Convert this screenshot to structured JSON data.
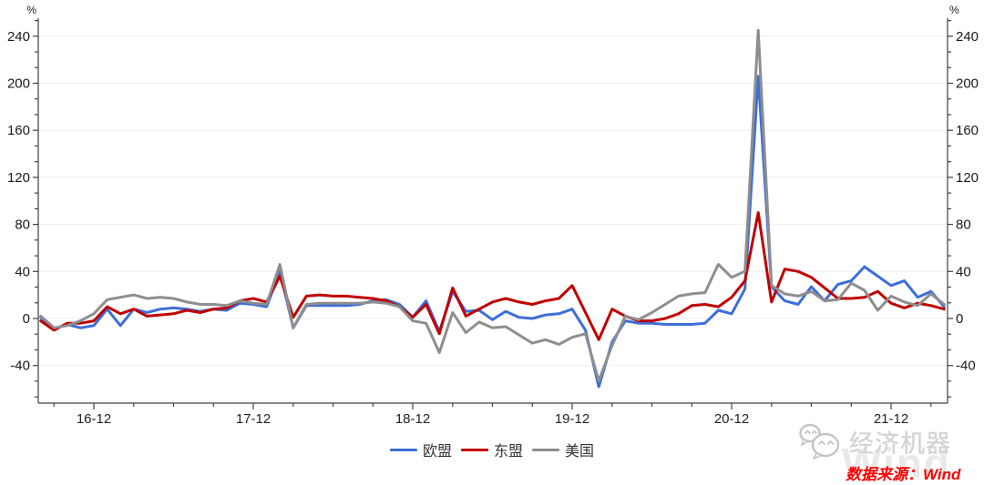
{
  "page": {
    "background": "#ffffff"
  },
  "colors": {
    "eu_blue": "#3d6ed9",
    "asean_red": "#c00000",
    "us_gray": "#8e8e8e",
    "axis": "#404040",
    "gridline": "#ededed",
    "tick_label": "#1a1a1a",
    "source_red": "#fa0000",
    "watermark_gray": "#e9e9e9"
  },
  "chart_data": {
    "type": "line",
    "title": "",
    "xlabel": "",
    "ylabel": "",
    "y_unit_label_left": "%",
    "y_unit_label_right": "%",
    "grid": "horizontal-major-only",
    "legend_position": "bottom-center",
    "y_axis": {
      "min": -66.7,
      "max": 253.3,
      "major_ticks": [
        -40,
        0,
        40,
        80,
        120,
        160,
        200,
        240
      ],
      "minor_ticks_per_major": 2,
      "mirrored_right_axis": true
    },
    "x_axis": {
      "labeled_ticks": [
        "16-12",
        "17-12",
        "18-12",
        "19-12",
        "20-12",
        "21-12"
      ],
      "minor_tick_every_months": 3
    },
    "x": [
      "16-08",
      "16-09",
      "16-10",
      "16-11",
      "16-12",
      "17-01",
      "17-02",
      "17-03",
      "17-04",
      "17-05",
      "17-06",
      "17-07",
      "17-08",
      "17-09",
      "17-10",
      "17-11",
      "17-12",
      "18-01",
      "18-02",
      "18-03",
      "18-04",
      "18-05",
      "18-06",
      "18-07",
      "18-08",
      "18-09",
      "18-10",
      "18-11",
      "18-12",
      "19-01",
      "19-02",
      "19-03",
      "19-04",
      "19-05",
      "19-06",
      "19-07",
      "19-08",
      "19-09",
      "19-10",
      "19-11",
      "19-12",
      "20-01",
      "20-02",
      "20-03",
      "20-04",
      "20-05",
      "20-06",
      "20-07",
      "20-08",
      "20-09",
      "20-10",
      "20-11",
      "20-12",
      "21-01",
      "21-02",
      "21-03",
      "21-04",
      "21-05",
      "21-06",
      "21-07",
      "21-08",
      "21-09",
      "21-10",
      "21-11",
      "21-12",
      "22-01",
      "22-02",
      "22-03",
      "22-04"
    ],
    "series": [
      {
        "id": "eu",
        "name": "欧盟",
        "color": "#3d6ed9",
        "values": [
          1,
          -9,
          -5,
          -8,
          -6,
          8,
          -6,
          8,
          5,
          8,
          9,
          8,
          6,
          8,
          7,
          13,
          12,
          10,
          40,
          -8,
          11,
          11,
          11,
          11,
          12,
          15,
          16,
          12,
          1,
          15,
          -11,
          23,
          6,
          7,
          -1,
          6,
          1,
          0,
          3,
          4,
          8,
          -10,
          -58,
          -20,
          -2,
          -4,
          -4,
          -5,
          -5,
          -5,
          -4,
          7,
          4,
          25,
          206,
          27,
          15,
          12,
          27,
          15,
          29,
          32,
          44,
          36,
          28,
          32,
          18,
          23,
          10
        ]
      },
      {
        "id": "asean",
        "name": "东盟",
        "color": "#c00000",
        "values": [
          -2,
          -10,
          -4,
          -4,
          -2,
          10,
          4,
          8,
          2,
          3,
          4,
          7,
          5,
          8,
          9,
          15,
          17,
          14,
          36,
          1,
          19,
          20,
          19,
          19,
          18,
          17,
          15,
          10,
          1,
          12,
          -13,
          26,
          2,
          8,
          14,
          17,
          14,
          12,
          15,
          17,
          28,
          5,
          -18,
          8,
          2,
          -2,
          -2,
          0,
          4,
          11,
          12,
          10,
          18,
          32,
          90,
          14,
          42,
          40,
          35,
          26,
          17,
          17,
          18,
          23,
          13,
          9,
          13,
          11,
          8
        ]
      },
      {
        "id": "us",
        "name": "美国",
        "color": "#8e8e8e",
        "values": [
          2,
          -8,
          -6,
          -2,
          4,
          16,
          18,
          20,
          17,
          18,
          17,
          14,
          12,
          12,
          11,
          15,
          13,
          12,
          46,
          -8,
          12,
          13,
          13,
          13,
          13,
          14,
          13,
          10,
          -2,
          -4,
          -29,
          5,
          -12,
          -3,
          -8,
          -7,
          -14,
          -21,
          -18,
          -22,
          -16,
          -13,
          -53,
          -23,
          2,
          -1,
          5,
          12,
          19,
          21,
          22,
          46,
          35,
          40,
          245,
          28,
          21,
          19,
          23,
          15,
          16,
          30,
          24,
          7,
          19,
          14,
          11,
          21,
          12
        ]
      }
    ]
  },
  "footer": {
    "brand_name": "经济机器",
    "brand_icon": "wechat-icon",
    "watermark": "Wind",
    "source_text": "数据来源：Wind"
  }
}
